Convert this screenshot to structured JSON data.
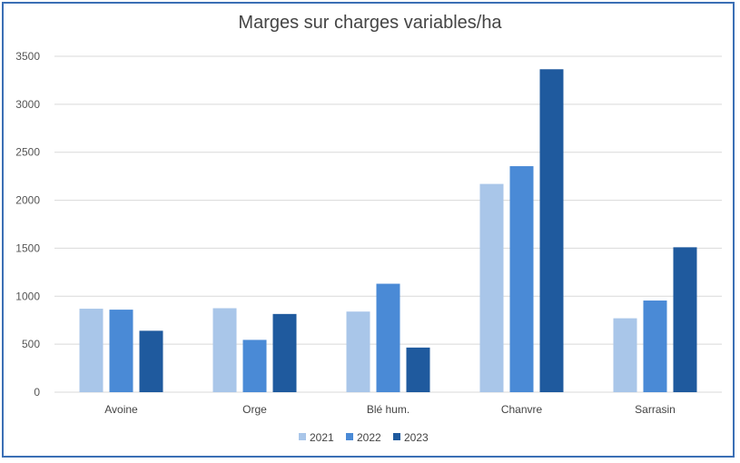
{
  "chart_data": {
    "type": "bar",
    "title": "Marges sur charges variables/ha",
    "xlabel": "",
    "ylabel": "",
    "categories": [
      "Avoine",
      "Orge",
      "Blé hum.",
      "Chanvre",
      "Sarrasin"
    ],
    "series": [
      {
        "name": "2021",
        "values": [
          870,
          875,
          840,
          2170,
          770
        ],
        "color": "#a9c6e9"
      },
      {
        "name": "2022",
        "values": [
          860,
          545,
          1130,
          2355,
          955
        ],
        "color": "#4a8ad6"
      },
      {
        "name": "2023",
        "values": [
          640,
          815,
          465,
          3365,
          1510
        ],
        "color": "#1f5a9e"
      }
    ],
    "ylim": [
      0,
      3500
    ],
    "yticks": [
      0,
      500,
      1000,
      1500,
      2000,
      2500,
      3000,
      3500
    ],
    "grid": true,
    "legend_position": "bottom"
  }
}
